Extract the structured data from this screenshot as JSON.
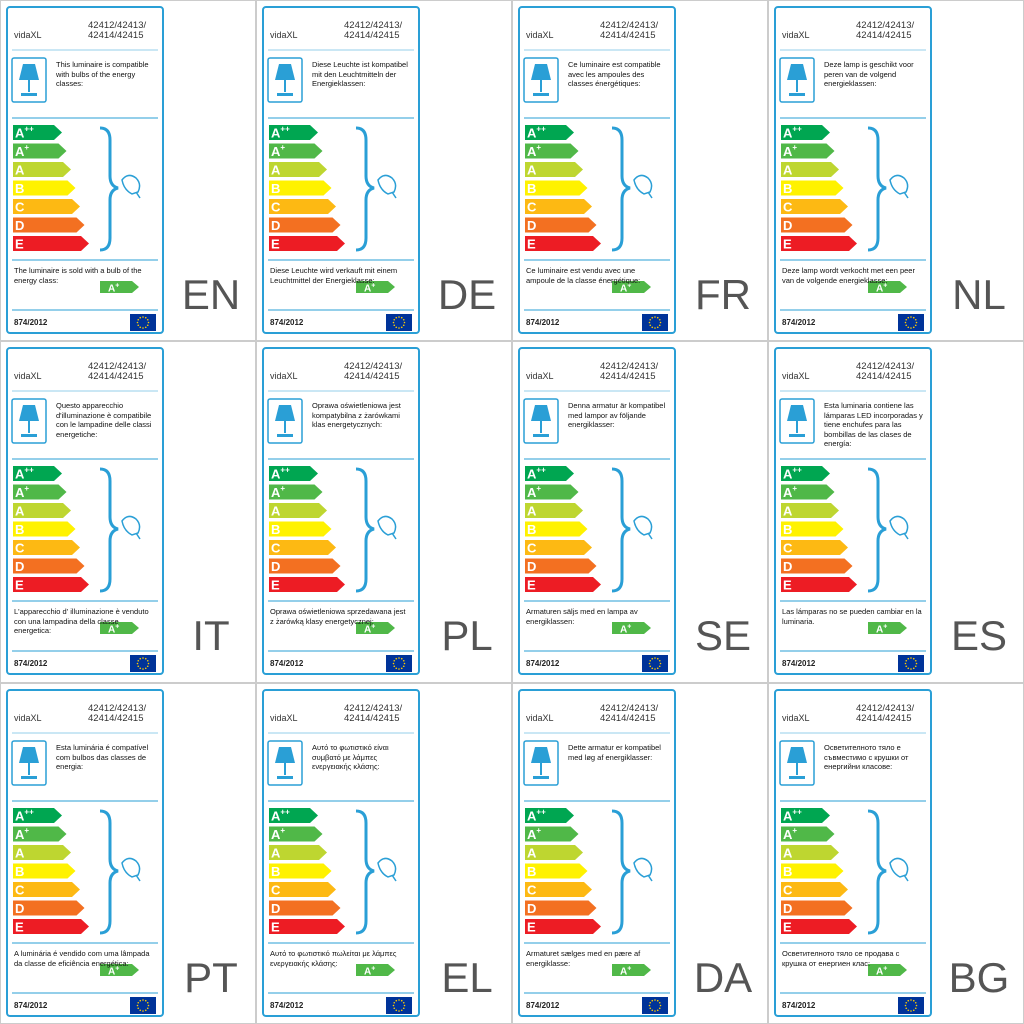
{
  "brand": "vidaXL",
  "model_lines": [
    "42412/42413/",
    "42414/42415"
  ],
  "classes": [
    {
      "letter": "A",
      "sup": "++",
      "color": "#00a651"
    },
    {
      "letter": "A",
      "sup": "+",
      "color": "#50b848"
    },
    {
      "letter": "A",
      "sup": "",
      "color": "#bed630"
    },
    {
      "letter": "B",
      "sup": "",
      "color": "#fff200"
    },
    {
      "letter": "C",
      "sup": "",
      "color": "#fdb913"
    },
    {
      "letter": "D",
      "sup": "",
      "color": "#f37021"
    },
    {
      "letter": "E",
      "sup": "",
      "color": "#ed1c24"
    }
  ],
  "regulation": "874/2012",
  "panels": [
    {
      "code": "EN",
      "compatible_text": "This luminaire is compatible with bulbs of the energy classes:",
      "sold_text": "The luminaire is sold with a bulb of the energy class:",
      "rating": {
        "letter": "A",
        "sup": "+"
      }
    },
    {
      "code": "DE",
      "compatible_text": "Diese Leuchte ist kompatibel mit den Leuchtmitteln der Energieklassen:",
      "sold_text": "Diese Leuchte wird verkauft mit einem Leuchtmittel der Energieklasse:",
      "rating": {
        "letter": "A",
        "sup": "+"
      }
    },
    {
      "code": "FR",
      "compatible_text": "Ce luminaire est compatible avec les ampoules des classes énergétiques:",
      "sold_text": "Ce luminaire est vendu avec une ampoule de la classe énergétique:",
      "rating": {
        "letter": "A",
        "sup": "+"
      }
    },
    {
      "code": "NL",
      "compatible_text": "Deze lamp is geschikt voor peren van de volgend energieklassen:",
      "sold_text": "Deze lamp wordt verkocht met een peer van de volgende energieklasse:",
      "rating": {
        "letter": "A",
        "sup": "+"
      }
    },
    {
      "code": "IT",
      "compatible_text": "Questo apparecchio d'illuminazione è compatibile con le lampadine delle classi energetiche:",
      "sold_text": "L'apparecchio d'  illuminazione è venduto con una lampadina della classe energetica:",
      "rating": {
        "letter": "A",
        "sup": "+"
      }
    },
    {
      "code": "PL",
      "compatible_text": "Oprawa oświetleniowa jest kompatybilna z żarówkami klas energetycznych:",
      "sold_text": "Oprawa oświetleniowa sprzedawana jest z żarówką klasy energetycznej:",
      "rating": {
        "letter": "A",
        "sup": "+"
      }
    },
    {
      "code": "SE",
      "compatible_text": "Denna armatur är kompatibel med lampor av följande energiklasser:",
      "sold_text": "Armaturen säljs med en lampa av energiklassen:",
      "rating": {
        "letter": "A",
        "sup": "+"
      }
    },
    {
      "code": "ES",
      "compatible_text": "Esta luminaria contiene las lámparas LED incorporadas y tiene enchufes para las bombillas de las clases de energía:",
      "sold_text": "Las lámparas no se pueden cambiar en la luminaria.",
      "rating": {
        "letter": "A",
        "sup": "+"
      }
    },
    {
      "code": "PT",
      "compatible_text": "Esta luminária é compatível com bulbos das classes de energia:",
      "sold_text": "A luminária é vendido com uma lâmpada da classe de eficiência energética:",
      "rating": {
        "letter": "A",
        "sup": "+"
      }
    },
    {
      "code": "EL",
      "compatible_text": "Αυτό το φωτιστικό είναι συμβατό με λάμπες ενεργειακής κλάσης:",
      "sold_text": "Αυτό το φωτιστικό πωλείται με λάμπες ενεργειακής κλάσης:",
      "rating": {
        "letter": "A",
        "sup": "+"
      }
    },
    {
      "code": "DA",
      "compatible_text": "Dette armatur er kompatibel med løg af energiklasser:",
      "sold_text": "Armaturet sælges med en pære af energiklasse:",
      "rating": {
        "letter": "A",
        "sup": "+"
      }
    },
    {
      "code": "BG",
      "compatible_text": "Осветителното тяло е съвместимо с крушки от енергийни класове:",
      "sold_text": "Осветителното тяло се продава с крушка от енергиен клас:",
      "rating": {
        "letter": "A",
        "sup": "+"
      }
    }
  ]
}
